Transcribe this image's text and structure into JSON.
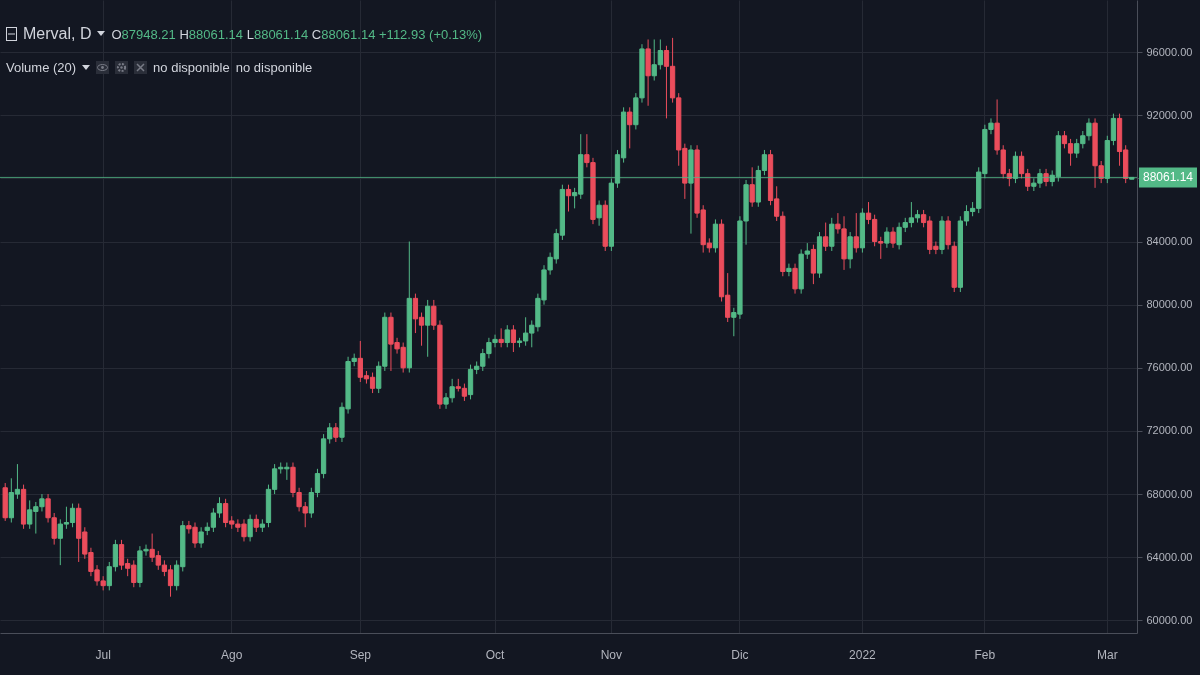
{
  "chart_data": {
    "type": "candlestick",
    "title": "Merval, D",
    "annotations": [
      "O87948.21 H88061.14 L88061.14 C88061.14 +112.93 (+0.13%)",
      "Volume (20)",
      "no disponible",
      "no disponible"
    ],
    "categories": [
      null,
      null,
      null,
      null,
      null,
      null,
      null,
      null,
      null,
      null,
      null,
      null,
      null,
      null,
      null,
      null,
      "Jul",
      null,
      null,
      null,
      null,
      null,
      null,
      null,
      null,
      null,
      null,
      null,
      null,
      null,
      null,
      null,
      null,
      null,
      null,
      null,
      null,
      "Ago",
      null,
      null,
      null,
      null,
      null,
      null,
      null,
      null,
      null,
      null,
      null,
      null,
      null,
      null,
      null,
      null,
      null,
      null,
      null,
      null,
      "Sep",
      null,
      null,
      null,
      null,
      null,
      null,
      null,
      null,
      null,
      null,
      null,
      null,
      null,
      null,
      null,
      null,
      null,
      null,
      null,
      null,
      null,
      "Oct",
      null,
      null,
      null,
      null,
      null,
      null,
      null,
      null,
      null,
      null,
      null,
      null,
      null,
      null,
      null,
      null,
      null,
      null,
      "Nov",
      null,
      null,
      null,
      null,
      null,
      null,
      null,
      null,
      null,
      null,
      null,
      null,
      null,
      null,
      null,
      null,
      null,
      null,
      null,
      null,
      "Dic",
      null,
      null,
      null,
      null,
      null,
      null,
      null,
      null,
      null,
      null,
      null,
      null,
      null,
      null,
      null,
      null,
      null,
      null,
      null,
      "2022",
      null,
      null,
      null,
      null,
      null,
      null,
      null,
      null,
      null,
      null,
      null,
      null,
      null,
      null,
      null,
      null,
      null,
      null,
      null,
      "Feb",
      null,
      null,
      null,
      null,
      null,
      null,
      null,
      null,
      null,
      null,
      null,
      null,
      null,
      null,
      null,
      null,
      null,
      null,
      null,
      "Mar",
      null,
      null,
      null,
      null
    ],
    "ohlc": [
      [
        68400,
        68700,
        66300,
        66500
      ],
      [
        66500,
        69000,
        66200,
        68100
      ],
      [
        68000,
        69900,
        67700,
        68300
      ],
      [
        68300,
        68600,
        65800,
        66100
      ],
      [
        66100,
        67600,
        65800,
        67000
      ],
      [
        66900,
        67500,
        65500,
        67200
      ],
      [
        67200,
        68000,
        66900,
        67700
      ],
      [
        67700,
        68000,
        66200,
        66500
      ],
      [
        66500,
        66800,
        64800,
        65200
      ],
      [
        65200,
        66400,
        63500,
        66100
      ],
      [
        66100,
        67200,
        65800,
        66200
      ],
      [
        66200,
        67400,
        65900,
        67100
      ],
      [
        67100,
        67400,
        63700,
        65200
      ],
      [
        65600,
        65900,
        63900,
        64200
      ],
      [
        64300,
        64600,
        62800,
        63100
      ],
      [
        63200,
        63500,
        62200,
        62500
      ],
      [
        62500,
        62800,
        61900,
        62200
      ],
      [
        62200,
        63700,
        61900,
        63400
      ],
      [
        63400,
        65100,
        63100,
        64800
      ],
      [
        64800,
        65100,
        63200,
        63500
      ],
      [
        63600,
        63900,
        62800,
        63300
      ],
      [
        63500,
        63800,
        62100,
        62400
      ],
      [
        62400,
        64700,
        62100,
        64400
      ],
      [
        64400,
        64800,
        64100,
        64500
      ],
      [
        64500,
        65500,
        63700,
        64000
      ],
      [
        64100,
        64400,
        63200,
        63500
      ],
      [
        63500,
        63800,
        62800,
        63100
      ],
      [
        63200,
        63500,
        61500,
        62200
      ],
      [
        62200,
        63800,
        61900,
        63500
      ],
      [
        63400,
        66300,
        63100,
        66000
      ],
      [
        66000,
        66300,
        65500,
        65800
      ],
      [
        65900,
        66200,
        64600,
        64900
      ],
      [
        64900,
        65900,
        64600,
        65600
      ],
      [
        65700,
        66200,
        65400,
        65900
      ],
      [
        65900,
        67100,
        65600,
        66800
      ],
      [
        66800,
        67800,
        66500,
        67400
      ],
      [
        67400,
        67700,
        65900,
        66200
      ],
      [
        66300,
        66600,
        65800,
        66100
      ],
      [
        66100,
        66400,
        65600,
        65900
      ],
      [
        66100,
        66400,
        65000,
        65300
      ],
      [
        65300,
        66700,
        65000,
        66400
      ],
      [
        66400,
        66700,
        65600,
        65900
      ],
      [
        65900,
        66400,
        65600,
        66100
      ],
      [
        66200,
        68600,
        65900,
        68300
      ],
      [
        68300,
        69900,
        68000,
        69600
      ],
      [
        69600,
        70000,
        69300,
        69700
      ],
      [
        69600,
        70000,
        68900,
        69700
      ],
      [
        69700,
        70000,
        67800,
        68100
      ],
      [
        68100,
        68400,
        66900,
        67200
      ],
      [
        67200,
        67500,
        65900,
        66800
      ],
      [
        66800,
        68400,
        66500,
        68100
      ],
      [
        68100,
        69600,
        67800,
        69300
      ],
      [
        69300,
        71800,
        69000,
        71500
      ],
      [
        71500,
        72500,
        71200,
        72200
      ],
      [
        72200,
        72500,
        71300,
        71600
      ],
      [
        71600,
        73800,
        71300,
        73500
      ],
      [
        73400,
        76700,
        73100,
        76400
      ],
      [
        76400,
        76900,
        76100,
        76600
      ],
      [
        76600,
        77700,
        75100,
        75400
      ],
      [
        75500,
        75800,
        75000,
        75300
      ],
      [
        75400,
        75700,
        74400,
        74700
      ],
      [
        74700,
        76400,
        74400,
        76100
      ],
      [
        76100,
        79500,
        75800,
        79200
      ],
      [
        79200,
        79500,
        75800,
        77500
      ],
      [
        77600,
        77900,
        76900,
        77200
      ],
      [
        77300,
        77600,
        75700,
        76000
      ],
      [
        76000,
        84000,
        75700,
        80400
      ],
      [
        80400,
        80700,
        78200,
        79100
      ],
      [
        79200,
        79500,
        77400,
        78700
      ],
      [
        78700,
        80300,
        76700,
        79900
      ],
      [
        79900,
        80300,
        78400,
        78700
      ],
      [
        78700,
        79000,
        73400,
        73700
      ],
      [
        73700,
        74400,
        73400,
        74100
      ],
      [
        74100,
        75300,
        73800,
        74800
      ],
      [
        74800,
        75300,
        74500,
        74700
      ],
      [
        74700,
        75000,
        73900,
        74200
      ],
      [
        74300,
        76200,
        74000,
        75900
      ],
      [
        75900,
        76400,
        75600,
        76100
      ],
      [
        76100,
        77200,
        75800,
        76900
      ],
      [
        76900,
        77900,
        76600,
        77600
      ],
      [
        77600,
        78100,
        77300,
        77800
      ],
      [
        77800,
        78500,
        77300,
        77600
      ],
      [
        77600,
        78700,
        77300,
        78400
      ],
      [
        78400,
        78700,
        77000,
        77600
      ],
      [
        77600,
        77900,
        77300,
        77700
      ],
      [
        77700,
        79200,
        77400,
        78200
      ],
      [
        78200,
        79000,
        77300,
        78700
      ],
      [
        78600,
        80700,
        78300,
        80400
      ],
      [
        80300,
        82500,
        80000,
        82200
      ],
      [
        82200,
        83300,
        81900,
        83000
      ],
      [
        82900,
        84800,
        82600,
        84500
      ],
      [
        84400,
        87600,
        84100,
        87300
      ],
      [
        87300,
        87600,
        85900,
        86900
      ],
      [
        86900,
        87400,
        86100,
        87100
      ],
      [
        87000,
        90800,
        86700,
        89500
      ],
      [
        89500,
        90800,
        88700,
        89000
      ],
      [
        89000,
        89300,
        85100,
        85400
      ],
      [
        85500,
        86600,
        85000,
        86300
      ],
      [
        86300,
        86600,
        83400,
        83700
      ],
      [
        83700,
        88000,
        83400,
        87700
      ],
      [
        87700,
        89800,
        87400,
        89500
      ],
      [
        89300,
        92500,
        89000,
        92200
      ],
      [
        92200,
        92500,
        89900,
        91400
      ],
      [
        91400,
        93400,
        91100,
        93100
      ],
      [
        93100,
        96500,
        92800,
        96200
      ],
      [
        96200,
        96800,
        92600,
        94500
      ],
      [
        94500,
        96800,
        94200,
        95200
      ],
      [
        95200,
        96800,
        94900,
        96100
      ],
      [
        96100,
        96400,
        91800,
        95100
      ],
      [
        95100,
        96900,
        92800,
        93100
      ],
      [
        93100,
        93400,
        88800,
        89800
      ],
      [
        89900,
        90200,
        86700,
        87700
      ],
      [
        87700,
        90100,
        84500,
        89800
      ],
      [
        89800,
        90100,
        85500,
        85800
      ],
      [
        86000,
        86300,
        83300,
        83800
      ],
      [
        83900,
        84200,
        83300,
        83600
      ],
      [
        83600,
        85400,
        83300,
        85100
      ],
      [
        85100,
        85400,
        80200,
        80500
      ],
      [
        80600,
        82000,
        78900,
        79200
      ],
      [
        79200,
        79800,
        78000,
        79500
      ],
      [
        79400,
        85600,
        79100,
        85300
      ],
      [
        85300,
        87900,
        83800,
        87600
      ],
      [
        87600,
        88700,
        86200,
        86500
      ],
      [
        86500,
        88800,
        86200,
        88500
      ],
      [
        88500,
        89800,
        88200,
        89500
      ],
      [
        89500,
        89800,
        86300,
        86600
      ],
      [
        86700,
        87500,
        85300,
        85600
      ],
      [
        85600,
        85900,
        81800,
        82100
      ],
      [
        82100,
        82600,
        81800,
        82300
      ],
      [
        82300,
        82600,
        80700,
        81000
      ],
      [
        81000,
        83500,
        80700,
        83200
      ],
      [
        83200,
        83900,
        82900,
        83400
      ],
      [
        83500,
        83800,
        81300,
        82000
      ],
      [
        82000,
        84600,
        81700,
        84300
      ],
      [
        84300,
        85200,
        83400,
        83700
      ],
      [
        83700,
        85500,
        83400,
        85100
      ],
      [
        85100,
        85800,
        84500,
        84800
      ],
      [
        84800,
        85600,
        82200,
        82900
      ],
      [
        82900,
        84600,
        82300,
        84300
      ],
      [
        84300,
        85800,
        83300,
        83600
      ],
      [
        83600,
        86100,
        83300,
        85800
      ],
      [
        85800,
        86500,
        85100,
        85400
      ],
      [
        85400,
        85700,
        83700,
        84000
      ],
      [
        84000,
        84300,
        82900,
        83900
      ],
      [
        83900,
        84900,
        83600,
        84600
      ],
      [
        84600,
        84900,
        83600,
        83900
      ],
      [
        83800,
        85200,
        83500,
        84900
      ],
      [
        84900,
        85500,
        84600,
        85200
      ],
      [
        85200,
        86500,
        84900,
        85500
      ],
      [
        85500,
        86000,
        85200,
        85700
      ],
      [
        85700,
        86000,
        84900,
        85200
      ],
      [
        85300,
        85600,
        83200,
        83500
      ],
      [
        83700,
        84000,
        83200,
        83500
      ],
      [
        83500,
        85600,
        83200,
        85300
      ],
      [
        85300,
        85600,
        83500,
        83800
      ],
      [
        83700,
        84000,
        80800,
        81100
      ],
      [
        81100,
        85600,
        80800,
        85300
      ],
      [
        85300,
        86300,
        85000,
        85900
      ],
      [
        85900,
        86500,
        85600,
        86100
      ],
      [
        86100,
        88700,
        85800,
        88400
      ],
      [
        88300,
        91400,
        88000,
        91100
      ],
      [
        91100,
        91800,
        90800,
        91500
      ],
      [
        91500,
        93000,
        89500,
        89800
      ],
      [
        89800,
        90100,
        88000,
        88300
      ],
      [
        88300,
        88600,
        87500,
        88000
      ],
      [
        88000,
        89700,
        87700,
        89400
      ],
      [
        89400,
        89700,
        88000,
        88300
      ],
      [
        88300,
        88600,
        87200,
        87500
      ],
      [
        87500,
        88000,
        87200,
        87700
      ],
      [
        87700,
        88600,
        87400,
        88300
      ],
      [
        88300,
        88600,
        87500,
        87800
      ],
      [
        87800,
        88500,
        87500,
        88200
      ],
      [
        88100,
        91000,
        87800,
        90700
      ],
      [
        90700,
        91000,
        89900,
        90200
      ],
      [
        90200,
        90500,
        88800,
        89600
      ],
      [
        89600,
        90500,
        89300,
        90200
      ],
      [
        90200,
        91000,
        89900,
        90700
      ],
      [
        90700,
        91800,
        90400,
        91500
      ],
      [
        91500,
        91800,
        87400,
        88800
      ],
      [
        88800,
        89100,
        87700,
        88000
      ],
      [
        88000,
        90700,
        87700,
        90400
      ],
      [
        90400,
        92100,
        90100,
        91800
      ],
      [
        91800,
        92100,
        88800,
        89700
      ],
      [
        89800,
        90100,
        87700,
        88000
      ],
      [
        87948.21,
        88061.14,
        87948.21,
        88061.14
      ]
    ],
    "colors": [
      "#eb4d5c",
      "#53b987",
      "#53b987",
      "#eb4d5c",
      "#53b987",
      "#53b987",
      "#53b987",
      "#eb4d5c",
      "#eb4d5c",
      "#53b987",
      "#53b987",
      "#53b987",
      "#eb4d5c",
      "#eb4d5c",
      "#eb4d5c",
      "#eb4d5c",
      "#eb4d5c",
      "#53b987",
      "#53b987",
      "#eb4d5c",
      "#eb4d5c",
      "#eb4d5c",
      "#53b987",
      "#53b987",
      "#eb4d5c",
      "#eb4d5c",
      "#eb4d5c",
      "#eb4d5c",
      "#53b987",
      "#53b987",
      "#eb4d5c",
      "#eb4d5c",
      "#53b987",
      "#53b987",
      "#53b987",
      "#53b987",
      "#eb4d5c",
      "#eb4d5c",
      "#eb4d5c",
      "#eb4d5c",
      "#53b987",
      "#eb4d5c",
      "#53b987",
      "#53b987",
      "#53b987",
      "#53b987",
      "#53b987",
      "#eb4d5c",
      "#eb4d5c",
      "#eb4d5c",
      "#53b987",
      "#53b987",
      "#53b987",
      "#53b987",
      "#eb4d5c",
      "#53b987",
      "#53b987",
      "#53b987",
      "#eb4d5c",
      "#eb4d5c",
      "#eb4d5c",
      "#53b987",
      "#53b987",
      "#eb4d5c",
      "#eb4d5c",
      "#eb4d5c",
      "#53b987",
      "#eb4d5c",
      "#eb4d5c",
      "#53b987",
      "#eb4d5c",
      "#eb4d5c",
      "#53b987",
      "#53b987",
      "#eb4d5c",
      "#eb4d5c",
      "#53b987",
      "#53b987",
      "#53b987",
      "#53b987",
      "#53b987",
      "#eb4d5c",
      "#53b987",
      "#eb4d5c",
      "#53b987",
      "#53b987",
      "#53b987",
      "#53b987",
      "#53b987",
      "#53b987",
      "#53b987",
      "#53b987",
      "#eb4d5c",
      "#53b987",
      "#53b987",
      "#eb4d5c",
      "#eb4d5c",
      "#53b987",
      "#eb4d5c",
      "#53b987",
      "#53b987",
      "#53b987",
      "#eb4d5c",
      "#53b987",
      "#53b987",
      "#eb4d5c",
      "#53b987",
      "#53b987",
      "#eb4d5c",
      "#eb4d5c",
      "#eb4d5c",
      "#eb4d5c",
      "#53b987",
      "#eb4d5c",
      "#eb4d5c",
      "#eb4d5c",
      "#53b987",
      "#eb4d5c",
      "#eb4d5c",
      "#53b987",
      "#53b987",
      "#53b987",
      "#eb4d5c",
      "#53b987",
      "#53b987",
      "#eb4d5c",
      "#eb4d5c",
      "#eb4d5c",
      "#53b987",
      "#eb4d5c",
      "#53b987",
      "#53b987",
      "#eb4d5c",
      "#53b987",
      "#eb4d5c",
      "#53b987",
      "#eb4d5c",
      "#eb4d5c",
      "#53b987",
      "#eb4d5c",
      "#53b987",
      "#eb4d5c",
      "#eb4d5c",
      "#eb4d5c",
      "#53b987",
      "#eb4d5c",
      "#53b987",
      "#53b987",
      "#53b987",
      "#53b987",
      "#eb4d5c",
      "#eb4d5c",
      "#eb4d5c",
      "#53b987",
      "#eb4d5c",
      "#eb4d5c",
      "#53b987",
      "#53b987",
      "#53b987",
      "#53b987",
      "#53b987",
      "#53b987",
      "#eb4d5c",
      "#eb4d5c",
      "#eb4d5c",
      "#53b987",
      "#eb4d5c",
      "#eb4d5c",
      "#53b987",
      "#53b987",
      "#eb4d5c",
      "#53b987",
      "#53b987",
      "#eb4d5c",
      "#eb4d5c",
      "#53b987",
      "#53b987",
      "#53b987",
      "#eb4d5c",
      "#eb4d5c",
      "#53b987",
      "#53b987",
      "#eb4d5c",
      "#eb4d5c",
      "#53b987"
    ],
    "ylim": [
      59200,
      99300
    ],
    "yticks": [
      {
        "value": 60000,
        "label": "60000.00"
      },
      {
        "value": 64000,
        "label": "64000.00"
      },
      {
        "value": 68000,
        "label": "68000.00"
      },
      {
        "value": 72000,
        "label": "72000.00"
      },
      {
        "value": 76000,
        "label": "76000.00"
      },
      {
        "value": 80000,
        "label": "80000.00"
      },
      {
        "value": 84000,
        "label": "84000.00"
      },
      {
        "value": 88000,
        "label": null
      },
      {
        "value": 92000,
        "label": "92000.00"
      },
      {
        "value": 96000,
        "label": "96000.00"
      }
    ],
    "ref_lines": [
      {
        "axis": "y",
        "value": 88061.14,
        "label": "88061.14",
        "color": "#53b987"
      }
    ],
    "grid": true
  }
}
